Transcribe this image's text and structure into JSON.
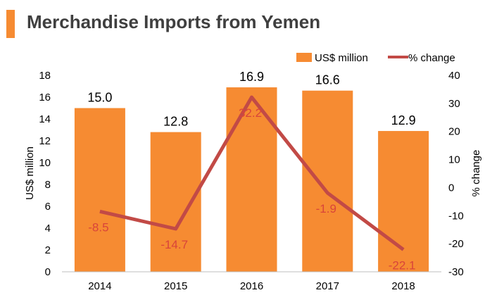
{
  "colors": {
    "bar": "#F68B32",
    "line": "#C24A46",
    "title_accent": "#F68B32",
    "text": "#000000",
    "title": "#3f3f3f"
  },
  "chart_data": {
    "type": "bar",
    "title": "Merchandise Imports from Yemen",
    "categories": [
      "2014",
      "2015",
      "2016",
      "2017",
      "2018"
    ],
    "series": [
      {
        "name": "US$ million",
        "type": "bar",
        "axis": "left",
        "values": [
          15.0,
          12.8,
          16.9,
          16.6,
          12.9
        ],
        "labels": [
          "15.0",
          "12.8",
          "16.9",
          "16.6",
          "12.9"
        ]
      },
      {
        "name": "% change",
        "type": "line",
        "axis": "right",
        "values": [
          -8.5,
          -14.7,
          32.2,
          -1.9,
          -22.1
        ],
        "labels": [
          "-8.5",
          "-14.7",
          "32.2",
          "-1.9",
          "-22.1"
        ]
      }
    ],
    "ylabel": "US$ million",
    "ylim": [
      0,
      18
    ],
    "yticks": [
      "0",
      "2",
      "4",
      "6",
      "8",
      "10",
      "12",
      "14",
      "16",
      "18"
    ],
    "y2label": "% change",
    "y2lim": [
      -30,
      40
    ],
    "y2ticks": [
      "-30",
      "-20",
      "-10",
      "0",
      "10",
      "20",
      "30",
      "40"
    ],
    "legend": "top-right",
    "grid": false
  }
}
